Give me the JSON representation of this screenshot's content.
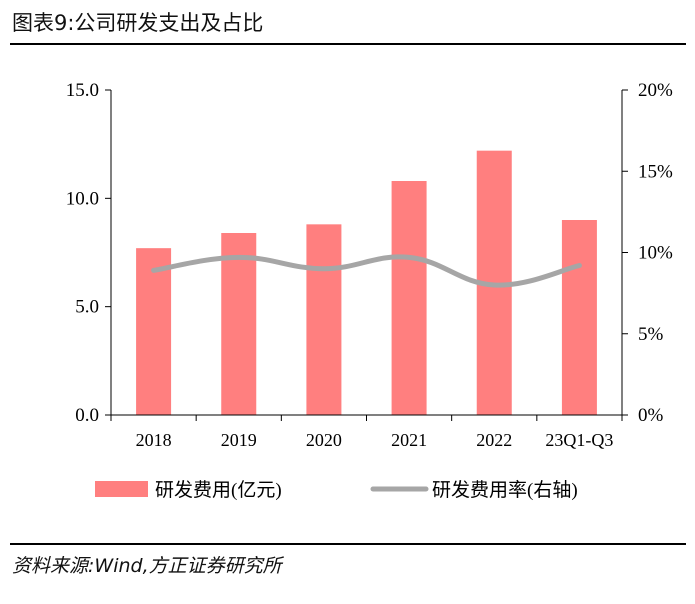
{
  "title": "图表9:公司研发支出及占比",
  "source": "资料来源:Wind,方正证券研究所",
  "colors": {
    "bar": "#FF7F7F",
    "line": "#A6A6A6",
    "axis": "#000000"
  },
  "chart_data": {
    "type": "bar",
    "categories": [
      "2018",
      "2019",
      "2020",
      "2021",
      "2022",
      "23Q1-Q3"
    ],
    "series": [
      {
        "name": "研发费用(亿元)",
        "type": "bar",
        "axis": "left",
        "values": [
          7.7,
          8.4,
          8.8,
          10.8,
          12.2,
          9.0
        ]
      },
      {
        "name": "研发费用率(右轴)",
        "type": "line",
        "axis": "right",
        "values": [
          8.9,
          9.7,
          9.0,
          9.7,
          8.0,
          9.2
        ]
      }
    ],
    "y_left": {
      "ylim": [
        0,
        15
      ],
      "ticks": [
        "0.0",
        "5.0",
        "10.0",
        "15.0"
      ]
    },
    "y_right": {
      "ylim": [
        0,
        20
      ],
      "ticks": [
        "0%",
        "5%",
        "10%",
        "15%",
        "20%"
      ]
    },
    "grid": false,
    "legend_position": "bottom"
  }
}
